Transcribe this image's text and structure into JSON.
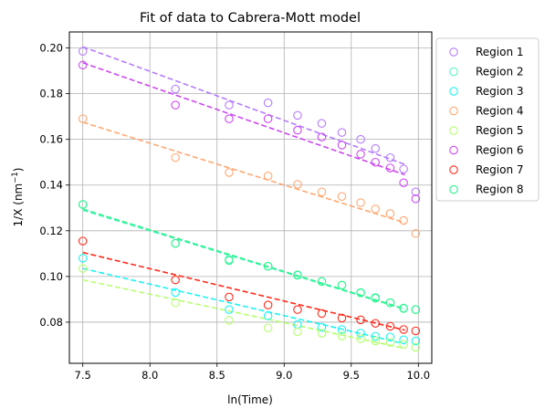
{
  "chart_data": {
    "type": "scatter",
    "title": "Fit of data to Cabrera-Mott model",
    "xlabel": "ln(Time)",
    "ylabel_main": "1/X (nm",
    "ylabel_sup": "−1",
    "ylabel_tail": ")",
    "xlim": [
      7.4,
      10.1
    ],
    "ylim": [
      0.062,
      0.207
    ],
    "x_ticks": [
      7.5,
      8.0,
      8.5,
      9.0,
      9.5,
      10.0
    ],
    "x_tick_labels": [
      "7.5",
      "8.0",
      "8.5",
      "9.0",
      "9.5",
      "10.0"
    ],
    "y_ticks": [
      0.08,
      0.1,
      0.12,
      0.14,
      0.16,
      0.18,
      0.2
    ],
    "y_tick_labels": [
      "0.08",
      "0.10",
      "0.12",
      "0.14",
      "0.16",
      "0.18",
      "0.20"
    ],
    "grid": true,
    "legend_position": "outside-right-top",
    "x": [
      7.5,
      8.19,
      8.59,
      8.88,
      9.1,
      9.28,
      9.43,
      9.57,
      9.68,
      9.79,
      9.89,
      9.98
    ],
    "series": [
      {
        "name": "Region 1",
        "color": "#b57cff",
        "values": [
          0.1985,
          0.182,
          0.175,
          0.176,
          0.1705,
          0.167,
          0.163,
          0.16,
          0.156,
          0.152,
          0.147,
          0.137
        ],
        "fit": [
          0.2005,
          0.149
        ]
      },
      {
        "name": "Region 2",
        "color": "#5cf2c8",
        "values": [
          0.1315,
          0.1145,
          0.1075,
          0.1045,
          0.1005,
          0.0978,
          0.0962,
          0.093,
          0.0908,
          0.0885,
          0.0862,
          0.0855
        ],
        "fit": [
          0.129,
          0.0856
        ]
      },
      {
        "name": "Region 3",
        "color": "#1bf2f2",
        "values": [
          0.108,
          0.093,
          0.0855,
          0.0828,
          0.079,
          0.0778,
          0.0768,
          0.0752,
          0.0738,
          0.0735,
          0.0723,
          0.0718
        ],
        "fit": [
          0.1035,
          0.0705
        ]
      },
      {
        "name": "Region 4",
        "color": "#ffa872",
        "values": [
          0.169,
          0.152,
          0.1455,
          0.144,
          0.1403,
          0.137,
          0.135,
          0.1323,
          0.1295,
          0.1275,
          0.1245,
          0.1188
        ],
        "fit": [
          0.1675,
          0.1235
        ]
      },
      {
        "name": "Region 5",
        "color": "#b6ff72",
        "values": [
          0.1035,
          0.0885,
          0.0808,
          0.0775,
          0.0758,
          0.0752,
          0.074,
          0.0728,
          0.0718,
          0.0712,
          0.0703,
          0.069
        ],
        "fit": [
          0.0985,
          0.0685
        ]
      },
      {
        "name": "Region 6",
        "color": "#cc48f0",
        "values": [
          0.1925,
          0.175,
          0.169,
          0.169,
          0.164,
          0.161,
          0.1575,
          0.1535,
          0.15,
          0.1475,
          0.141,
          0.134
        ],
        "fit": [
          0.1935,
          0.1445
        ]
      },
      {
        "name": "Region 7",
        "color": "#ff2a1a",
        "values": [
          0.1155,
          0.0985,
          0.091,
          0.0875,
          0.0855,
          0.0838,
          0.0818,
          0.081,
          0.0795,
          0.0782,
          0.0768,
          0.0762
        ],
        "fit": [
          0.1105,
          0.0765
        ]
      },
      {
        "name": "Region 8",
        "color": "#2af58a",
        "values": [
          0.1315,
          0.1145,
          0.107,
          0.1045,
          0.1007,
          0.0978,
          0.0962,
          0.0928,
          0.0905,
          0.0885,
          0.086,
          0.0855
        ],
        "fit": [
          0.1295,
          0.0858
        ]
      }
    ],
    "fit_x": [
      7.5,
      9.9
    ]
  }
}
